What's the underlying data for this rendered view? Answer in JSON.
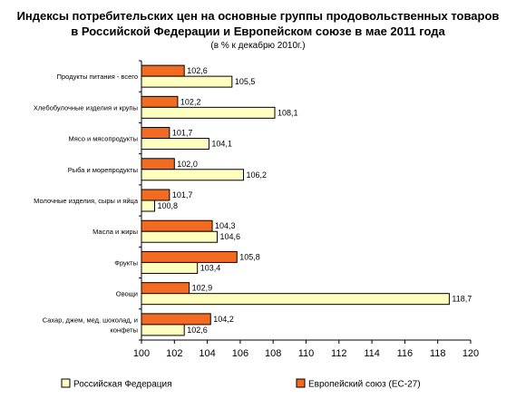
{
  "chart_data": {
    "type": "bar",
    "orientation": "horizontal",
    "title_line1": "Индексы потребительских цен на основные группы продовольственных товаров",
    "title_line2": "в Российской Федерации и Европейском союзе в мае 2011 года",
    "subtitle": "(в % к декабрю 2010г.)",
    "categories": [
      [
        "Продукты питания - всего"
      ],
      [
        "Хлебобулочные изделия и крупы"
      ],
      [
        "Мясо и мясопродукты"
      ],
      [
        "Рыба и морепродукты"
      ],
      [
        "Молочные изделия, сыры и яйца"
      ],
      [
        "Масла и жиры"
      ],
      [
        "Фрукты"
      ],
      [
        "Овощи"
      ],
      [
        "Сахар, джем, мед, шоколад, и",
        "конфеты"
      ]
    ],
    "series": [
      {
        "name": "Европейский союз (ЕС-27)",
        "color": "#f26b21",
        "values": [
          102.6,
          102.2,
          101.7,
          102.0,
          101.7,
          104.3,
          105.8,
          102.9,
          104.2
        ],
        "labels": [
          "102,6",
          "102,2",
          "101,7",
          "102,0",
          "101,7",
          "104,3",
          "105,8",
          "102,9",
          "104,2"
        ]
      },
      {
        "name": "Российская Федерация",
        "color": "#ffffc0",
        "values": [
          105.5,
          108.1,
          104.1,
          106.2,
          100.8,
          104.6,
          103.4,
          118.7,
          102.6
        ],
        "labels": [
          "105,5",
          "108,1",
          "104,1",
          "106,2",
          "100,8",
          "104,6",
          "103,4",
          "118,7",
          "102,6"
        ]
      }
    ],
    "xlim": [
      100,
      120
    ],
    "xticks": [
      "100",
      "102",
      "104",
      "106",
      "108",
      "110",
      "112",
      "114",
      "116",
      "118",
      "120"
    ],
    "grid": false,
    "legend_position": "bottom",
    "legend": [
      {
        "label": "Российская Федерация",
        "color": "#ffffc0"
      },
      {
        "label": "Европейский союз (ЕС-27)",
        "color": "#f26b21"
      }
    ]
  }
}
